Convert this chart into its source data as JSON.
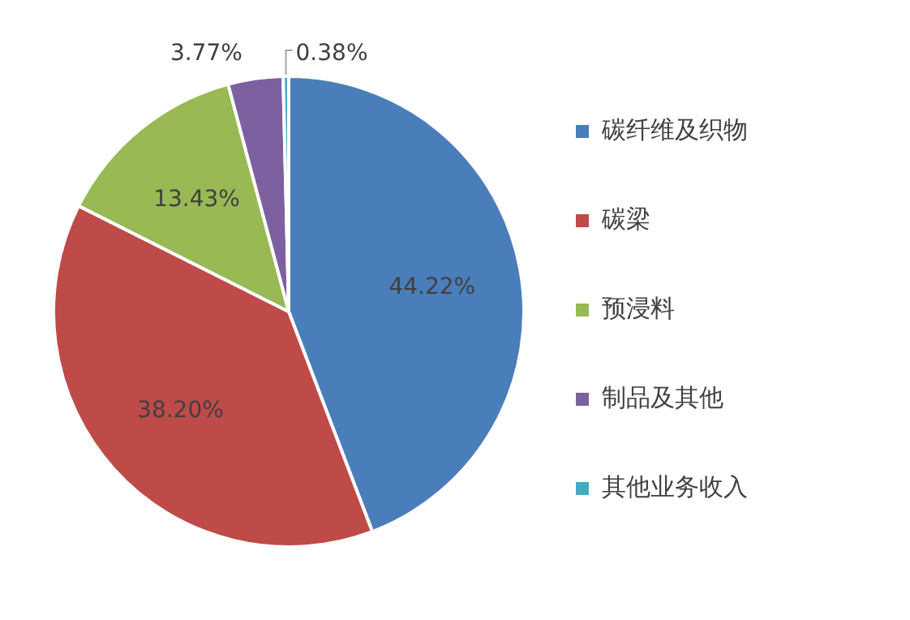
{
  "chart_data": {
    "type": "pie",
    "categories": [
      "碳纤维及织物",
      "碳梁",
      "预浸料",
      "制品及其他",
      "其他业务收入"
    ],
    "values": [
      44.22,
      38.2,
      13.43,
      3.77,
      0.38
    ],
    "value_labels": [
      "44.22%",
      "38.20%",
      "13.43%",
      "3.77%",
      "0.38%"
    ],
    "colors": [
      "#4a7ebb",
      "#be4b48",
      "#98b954",
      "#7d60a0",
      "#46aac5"
    ],
    "legend": "right"
  }
}
